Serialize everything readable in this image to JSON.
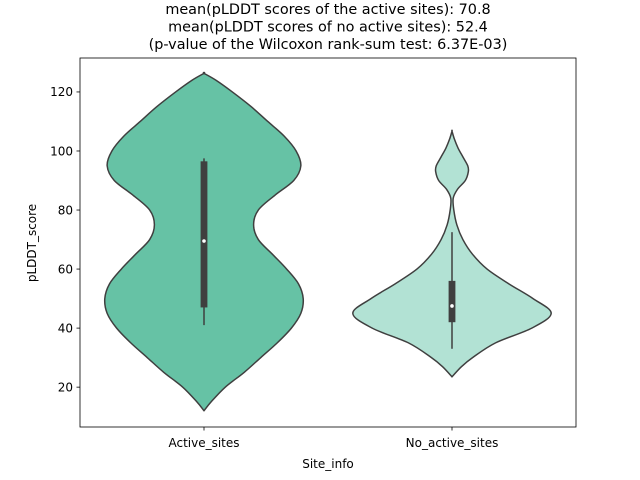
{
  "chart_data": {
    "type": "violin",
    "title_lines": [
      "mean(pLDDT scores of the active sites): 70.8",
      "mean(pLDDT scores of no active sites): 52.4",
      "(p-value of the Wilcoxon rank-sum test: 6.37E-03)"
    ],
    "xlabel": "Site_info",
    "ylabel": "pLDDT_score",
    "ylim": [
      6.5,
      131.5
    ],
    "yticks": [
      20,
      40,
      60,
      80,
      100,
      120
    ],
    "categories": [
      "Active_sites",
      "No_active_sites"
    ],
    "series": [
      {
        "name": "Active_sites",
        "color": "#66c2a5",
        "median": 69.5,
        "q1": 47,
        "q3": 96.5,
        "whisker_low": 41,
        "whisker_high": 97.5,
        "density": [
          [
            12,
            0
          ],
          [
            15,
            0.03
          ],
          [
            20,
            0.09
          ],
          [
            25,
            0.17
          ],
          [
            30,
            0.24
          ],
          [
            35,
            0.31
          ],
          [
            40,
            0.37
          ],
          [
            45,
            0.41
          ],
          [
            50,
            0.42
          ],
          [
            55,
            0.4
          ],
          [
            60,
            0.35
          ],
          [
            65,
            0.29
          ],
          [
            70,
            0.23
          ],
          [
            75,
            0.21
          ],
          [
            80,
            0.23
          ],
          [
            85,
            0.3
          ],
          [
            90,
            0.38
          ],
          [
            95,
            0.41
          ],
          [
            100,
            0.39
          ],
          [
            105,
            0.34
          ],
          [
            110,
            0.27
          ],
          [
            115,
            0.2
          ],
          [
            120,
            0.12
          ],
          [
            124,
            0.05
          ],
          [
            126.3,
            0
          ]
        ]
      },
      {
        "name": "No_active_sites",
        "color": "#b2e2d4",
        "median": 47.5,
        "q1": 42,
        "q3": 56,
        "whisker_low": 33,
        "whisker_high": 72.5,
        "density": [
          [
            23.5,
            0
          ],
          [
            27,
            0.08
          ],
          [
            30,
            0.17
          ],
          [
            35,
            0.36
          ],
          [
            40,
            0.66
          ],
          [
            45,
            0.82
          ],
          [
            50,
            0.67
          ],
          [
            55,
            0.47
          ],
          [
            60,
            0.29
          ],
          [
            65,
            0.17
          ],
          [
            70,
            0.09
          ],
          [
            75,
            0.04
          ],
          [
            80,
            0.015
          ],
          [
            84,
            0.01
          ],
          [
            87,
            0.045
          ],
          [
            90,
            0.11
          ],
          [
            93,
            0.135
          ],
          [
            95,
            0.13
          ],
          [
            98,
            0.09
          ],
          [
            101,
            0.05
          ],
          [
            104,
            0.02
          ],
          [
            106.7,
            0
          ]
        ]
      }
    ]
  }
}
